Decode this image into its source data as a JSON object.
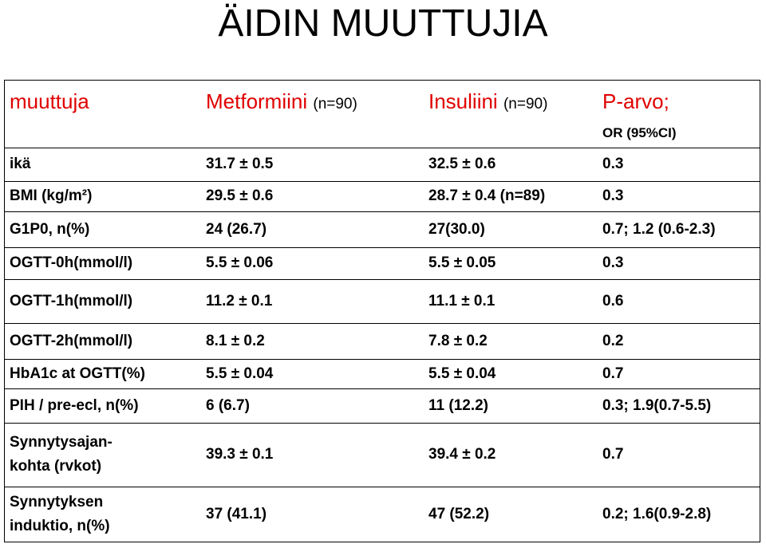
{
  "title": "ÄIDIN MUUTTUJIA",
  "table": {
    "header": [
      {
        "main": "muuttuja"
      },
      {
        "main": "Metformiini",
        "note": "(n=90)"
      },
      {
        "main": "Insuliini",
        "note": "(n=90)"
      },
      {
        "main": "P-arvo;",
        "sub": "OR (95%CI)"
      }
    ],
    "rows": [
      [
        "ikä",
        "31.7 ± 0.5",
        "32.5 ± 0.6",
        "0.3"
      ],
      [
        "BMI (kg/m²)",
        "29.5 ± 0.6",
        "28.7 ± 0.4 (n=89)",
        "0.3"
      ],
      [
        "G1P0, n(%)",
        "24 (26.7)",
        "27(30.0)",
        "0.7; 1.2 (0.6-2.3)"
      ],
      [
        "OGTT-0h(mmol/l)",
        "5.5 ± 0.06",
        "5.5 ± 0.05",
        "0.3"
      ],
      [
        "OGTT-1h(mmol/l)",
        "11.2 ± 0.1",
        "11.1 ± 0.1",
        "0.6"
      ],
      [
        "OGTT-2h(mmol/l)",
        "8.1 ± 0.2",
        "7.8 ± 0.2",
        "0.2"
      ],
      [
        "HbA1c at OGTT(%)",
        "5.5 ± 0.04",
        "5.5 ± 0.04",
        "0.7"
      ],
      [
        "PIH / pre-ecl, n(%)",
        "6 (6.7)",
        "11 (12.2)",
        "0.3; 1.9(0.7-5.5)"
      ],
      [
        "Synnytysajan-\nkohta (rvkot)",
        "39.3 ± 0.1",
        "39.4 ± 0.2",
        "0.7"
      ],
      [
        "Synnytyksen\ninduktio, n(%)",
        "37 (41.1)",
        "47 (52.2)",
        "0.2; 1.6(0.9-2.8)"
      ]
    ]
  }
}
